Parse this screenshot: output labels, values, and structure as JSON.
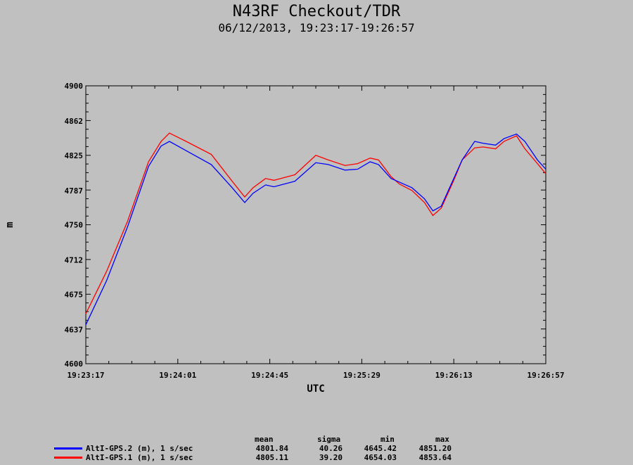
{
  "title": "N43RF Checkout/TDR",
  "subtitle": "06/12/2013, 19:23:17-19:26:57",
  "chart_data": {
    "type": "line",
    "xlabel": "UTC",
    "ylabel": "m",
    "xlim": [
      "19:23:17",
      "19:26:57"
    ],
    "ylim": [
      4600,
      4900
    ],
    "x_ticks": [
      "19:23:17",
      "19:24:01",
      "19:24:45",
      "19:25:29",
      "19:26:13",
      "19:26:57"
    ],
    "y_ticks": [
      "4600",
      "4637",
      "4675",
      "4712",
      "4750",
      "4787",
      "4825",
      "4862",
      "4900"
    ],
    "x_seconds": [
      0,
      10,
      20,
      30,
      36,
      40,
      48,
      60,
      70,
      76,
      80,
      86,
      90,
      100,
      110,
      116,
      124,
      130,
      136,
      140,
      146,
      150,
      156,
      162,
      166,
      170,
      176,
      180,
      186,
      190,
      196,
      200,
      206,
      210,
      216,
      220
    ],
    "series": [
      {
        "name": "AltI-GPS.2 (m), 1 s/sec",
        "color": "#0000ff",
        "values": [
          4642,
          4690,
          4748,
          4813,
          4835,
          4840,
          4830,
          4815,
          4790,
          4774,
          4784,
          4793,
          4791,
          4797,
          4817,
          4815,
          4809,
          4810,
          4818,
          4815,
          4800,
          4796,
          4790,
          4778,
          4765,
          4770,
          4800,
          4820,
          4840,
          4838,
          4836,
          4843,
          4848,
          4840,
          4820,
          4810
        ]
      },
      {
        "name": "AltI-GPS.1 (m), 1 s/sec",
        "color": "#ff0000",
        "values": [
          4654,
          4700,
          4754,
          4818,
          4840,
          4849,
          4840,
          4826,
          4797,
          4780,
          4790,
          4800,
          4798,
          4804,
          4825,
          4820,
          4814,
          4816,
          4822,
          4820,
          4802,
          4794,
          4787,
          4774,
          4760,
          4768,
          4798,
          4820,
          4833,
          4834,
          4832,
          4840,
          4846,
          4832,
          4816,
          4805
        ]
      }
    ],
    "stats_headers": [
      "mean",
      "sigma",
      "min",
      "max"
    ],
    "stats": [
      {
        "name": "AltI-GPS.2 (m), 1 s/sec",
        "color": "#0000ff",
        "mean": "4801.84",
        "sigma": "40.26",
        "min": "4645.42",
        "max": "4851.20"
      },
      {
        "name": "AltI-GPS.1 (m), 1 s/sec",
        "color": "#ff0000",
        "mean": "4805.11",
        "sigma": "39.20",
        "min": "4654.03",
        "max": "4853.64"
      }
    ]
  }
}
